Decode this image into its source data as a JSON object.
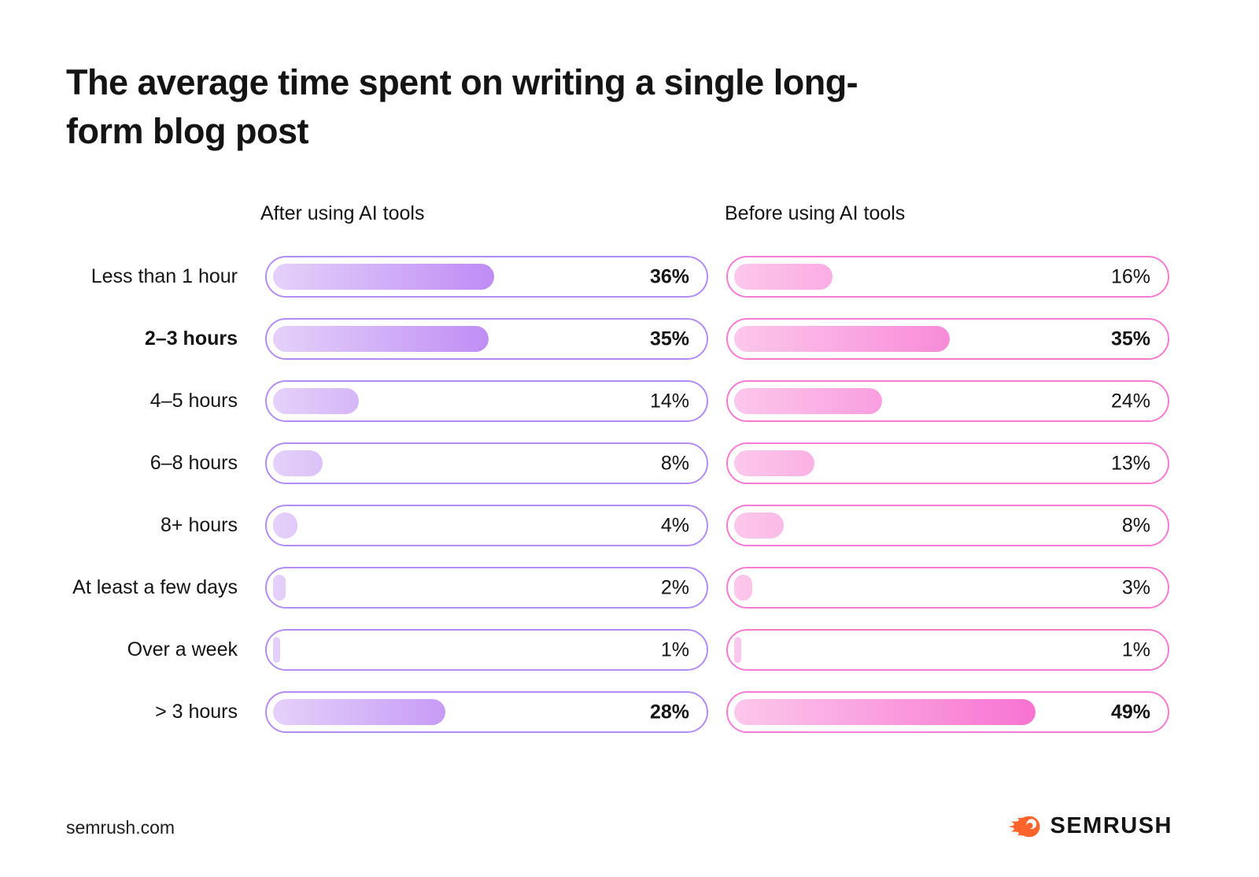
{
  "title": "The average time spent on writing a single long-form blog post",
  "columns": {
    "after_header": "After using AI tools",
    "before_header": "Before using AI tools"
  },
  "rows": [
    {
      "label": "Less than 1 hour",
      "label_bold": false,
      "after": {
        "value": 36,
        "label": "36%",
        "bold": true
      },
      "before": {
        "value": 16,
        "label": "16%",
        "bold": false
      }
    },
    {
      "label": "2–3 hours",
      "label_bold": true,
      "after": {
        "value": 35,
        "label": "35%",
        "bold": true
      },
      "before": {
        "value": 35,
        "label": "35%",
        "bold": true
      }
    },
    {
      "label": "4–5 hours",
      "label_bold": false,
      "after": {
        "value": 14,
        "label": "14%",
        "bold": false
      },
      "before": {
        "value": 24,
        "label": "24%",
        "bold": false
      }
    },
    {
      "label": "6–8 hours",
      "label_bold": false,
      "after": {
        "value": 8,
        "label": "8%",
        "bold": false
      },
      "before": {
        "value": 13,
        "label": "13%",
        "bold": false
      }
    },
    {
      "label": "8+ hours",
      "label_bold": false,
      "after": {
        "value": 4,
        "label": "4%",
        "bold": false
      },
      "before": {
        "value": 8,
        "label": "8%",
        "bold": false
      }
    },
    {
      "label": "At least a few days",
      "label_bold": false,
      "after": {
        "value": 2,
        "label": "2%",
        "bold": false
      },
      "before": {
        "value": 3,
        "label": "3%",
        "bold": false
      }
    },
    {
      "label": "Over a week",
      "label_bold": false,
      "after": {
        "value": 1,
        "label": "1%",
        "bold": false
      },
      "before": {
        "value": 1,
        "label": "1%",
        "bold": false
      }
    },
    {
      "label": "> 3 hours",
      "label_bold": false,
      "after": {
        "value": 28,
        "label": "28%",
        "bold": true
      },
      "before": {
        "value": 49,
        "label": "49%",
        "bold": true
      }
    }
  ],
  "chart_data": {
    "type": "bar",
    "orientation": "horizontal",
    "title": "The average time spent on writing a single long-form blog post",
    "categories": [
      "Less than 1 hour",
      "2–3 hours",
      "4–5 hours",
      "6–8 hours",
      "8+ hours",
      "At least a few days",
      "Over a week",
      "> 3 hours"
    ],
    "series": [
      {
        "name": "After using AI tools",
        "values": [
          36,
          35,
          14,
          8,
          4,
          2,
          1,
          28
        ]
      },
      {
        "name": "Before using AI tools",
        "values": [
          16,
          35,
          24,
          13,
          8,
          3,
          1,
          49
        ]
      }
    ],
    "value_format": "percent",
    "bar_scale_max": 70,
    "legend_position": "column-headers-top",
    "grid": false
  },
  "colors": {
    "ink": "#141414",
    "after_border": "#b38df4",
    "after_gradient_start": "#e5d1fa",
    "after_gradient_end": "#9a4bf0",
    "before_border": "#f77bd3",
    "before_gradient_start": "#fcc8ec",
    "before_gradient_end": "#f64ec6",
    "logo_orange": "#ff642d"
  },
  "footer": {
    "site": "semrush.com",
    "logo_text": "SEMRUSH"
  }
}
